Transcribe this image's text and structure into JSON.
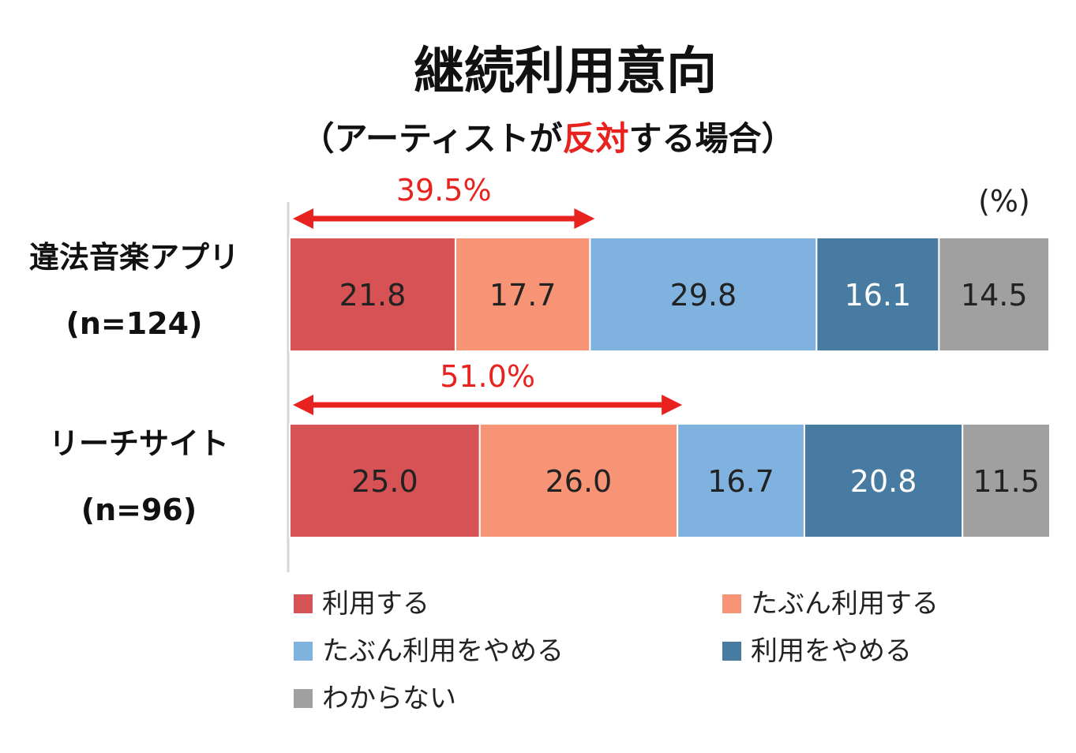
{
  "chart_data": {
    "type": "bar",
    "orientation": "horizontal",
    "stacked": true,
    "title": "継続利用意向",
    "subtitle_parts": [
      {
        "text": "（アーティストが",
        "highlight": false
      },
      {
        "text": "反対",
        "highlight": true
      },
      {
        "text": "する場合）",
        "highlight": false
      }
    ],
    "unit_label": "(%)",
    "categories": [
      {
        "name": "違法音楽アプリ",
        "n": "(n=124)"
      },
      {
        "name": "リーチサイト",
        "n": "(n=96)"
      }
    ],
    "xlim": [
      0,
      100
    ],
    "series": [
      {
        "name": "利用する",
        "color": "#d65254",
        "text_color": "#222222",
        "values": [
          21.8,
          25.0
        ]
      },
      {
        "name": "たぶん利用する",
        "color": "#f79476",
        "text_color": "#222222",
        "values": [
          17.7,
          26.0
        ]
      },
      {
        "name": "たぶん利用をやめる",
        "color": "#7fb2df",
        "text_color": "#222222",
        "values": [
          29.8,
          16.7
        ]
      },
      {
        "name": "利用をやめる",
        "color": "#477ba1",
        "text_color": "#ffffff",
        "values": [
          16.1,
          20.8
        ]
      },
      {
        "name": "わからない",
        "color": "#a0a0a0",
        "text_color": "#222222",
        "values": [
          14.5,
          11.5
        ]
      }
    ],
    "value_labels": [
      [
        "21.8",
        "17.7",
        "29.8",
        "16.1",
        "14.5"
      ],
      [
        "25.0",
        "26.0",
        "16.7",
        "20.8",
        "11.5"
      ]
    ],
    "brackets": [
      {
        "label": "39.5%",
        "value": 39.5,
        "category_index": 0
      },
      {
        "label": "51.0%",
        "value": 51.0,
        "category_index": 1
      }
    ],
    "accent_color": "#e8231f",
    "legend_position": "bottom"
  }
}
